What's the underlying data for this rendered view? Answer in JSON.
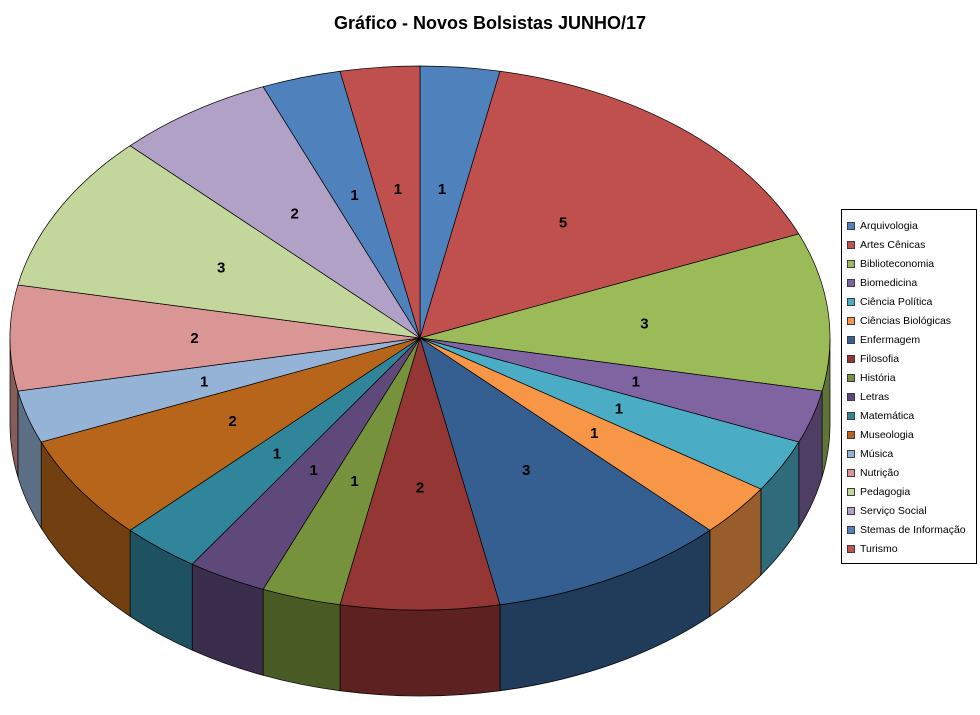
{
  "title": "Gráfico - Novos Bolsistas JUNHO/17",
  "chart_data": {
    "type": "pie",
    "style": "3d-pie",
    "title": "Gráfico - Novos Bolsistas JUNHO/17",
    "legend_position": "right",
    "data_labels": "values",
    "start_angle_deg": 0,
    "direction": "clockwise",
    "total": 32,
    "categories": [
      "Arquivologia",
      "Artes Cênicas",
      "Biblioteconomia",
      "Biomedicina",
      "Ciência Política",
      "Ciências Biológicas",
      "Enfermagem",
      "Filosofia",
      "História",
      "Letras",
      "Matemática",
      "Museologia",
      "Música",
      "Nutrição",
      "Pedagogia",
      "Serviço Social",
      "Stemas de Informação",
      "Turismo"
    ],
    "values": [
      1,
      5,
      3,
      1,
      1,
      1,
      3,
      2,
      1,
      1,
      1,
      2,
      1,
      2,
      3,
      2,
      1,
      1
    ],
    "colors": [
      "#4F81BD",
      "#C0504D",
      "#9BBB59",
      "#8064A2",
      "#4BACC6",
      "#F79646",
      "#365F91",
      "#943634",
      "#76923C",
      "#5F497A",
      "#31859B",
      "#B8651C",
      "#95B3D7",
      "#D99694",
      "#C3D69B",
      "#B2A1C7",
      "#4F81BD",
      "#C0504D"
    ]
  }
}
